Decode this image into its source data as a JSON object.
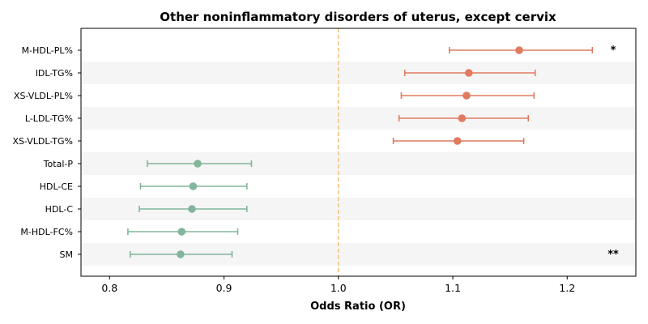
{
  "chart_data": {
    "type": "forest",
    "title": "Other noninflammatory disorders of uterus, except cervix",
    "xlabel": "Odds Ratio (OR)",
    "ylabel": "",
    "xlim": [
      0.775,
      1.26
    ],
    "xticks": [
      0.8,
      0.9,
      1.0,
      1.1,
      1.2
    ],
    "xtick_labels": [
      "0.8",
      "0.9",
      "1.0",
      "1.1",
      "1.2"
    ],
    "reference_line": 1.0,
    "grid": false,
    "row_shading": "alternating",
    "colors": {
      "positive": "#e07b5f",
      "negative": "#82b59b",
      "reference": "#f2c27e",
      "band": "#f5f5f5"
    },
    "rows": [
      {
        "label": "M-HDL-PL%",
        "or": 1.158,
        "lower": 1.097,
        "upper": 1.222,
        "sig": "*"
      },
      {
        "label": "IDL-TG%",
        "or": 1.114,
        "lower": 1.058,
        "upper": 1.172,
        "sig": ""
      },
      {
        "label": "XS-VLDL-PL%",
        "or": 1.112,
        "lower": 1.055,
        "upper": 1.171,
        "sig": ""
      },
      {
        "label": "L-LDL-TG%",
        "or": 1.108,
        "lower": 1.053,
        "upper": 1.166,
        "sig": ""
      },
      {
        "label": "XS-VLDL-TG%",
        "or": 1.104,
        "lower": 1.048,
        "upper": 1.162,
        "sig": ""
      },
      {
        "label": "Total-P",
        "or": 0.877,
        "lower": 0.833,
        "upper": 0.924,
        "sig": ""
      },
      {
        "label": "HDL-CE",
        "or": 0.873,
        "lower": 0.827,
        "upper": 0.92,
        "sig": ""
      },
      {
        "label": "HDL-C",
        "or": 0.872,
        "lower": 0.826,
        "upper": 0.92,
        "sig": ""
      },
      {
        "label": "M-HDL-FC%",
        "or": 0.863,
        "lower": 0.816,
        "upper": 0.912,
        "sig": ""
      },
      {
        "label": "SM",
        "or": 0.862,
        "lower": 0.818,
        "upper": 0.907,
        "sig": "**"
      }
    ]
  }
}
